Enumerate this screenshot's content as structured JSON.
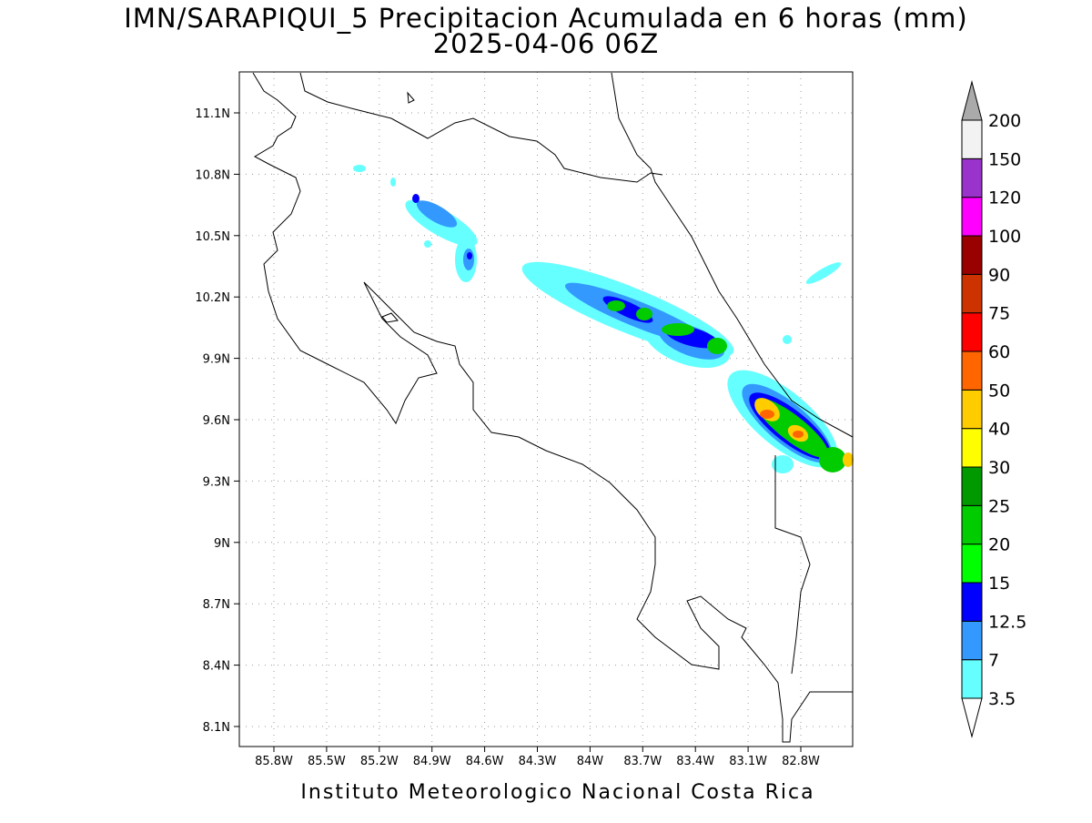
{
  "header": {
    "title": "IMN/SARAPIQUI_5 Precipitacion Acumulada en 6 horas (mm)",
    "subtitle": "2025-04-06 06Z"
  },
  "map": {
    "lat_labels": [
      "11.1N",
      "10.8N",
      "10.5N",
      "10.2N",
      "9.9N",
      "9.6N",
      "9.3N",
      "9N",
      "8.7N",
      "8.4N",
      "8.1N"
    ],
    "lon_labels": [
      "85.8W",
      "85.5W",
      "85.2W",
      "84.9W",
      "84.6W",
      "84.3W",
      "84W",
      "83.7W",
      "83.4W",
      "83.1W",
      "82.8W"
    ]
  },
  "colorbar": {
    "levels": [
      "3.5",
      "7",
      "12.5",
      "15",
      "20",
      "25",
      "30",
      "40",
      "50",
      "60",
      "75",
      "90",
      "100",
      "120",
      "150",
      "200"
    ],
    "colors": [
      "#66ffff",
      "#3399ff",
      "#0000ff",
      "#00ff00",
      "#00cc00",
      "#009900",
      "#ffff00",
      "#ffcc00",
      "#ff6600",
      "#ff0000",
      "#cc3300",
      "#990000",
      "#ff00ff",
      "#9933cc",
      "#f2f2f2"
    ],
    "low_color": "#ffffff",
    "high_color": "#aaaaaa"
  },
  "footer": "Instituto Meteorologico Nacional Costa Rica"
}
